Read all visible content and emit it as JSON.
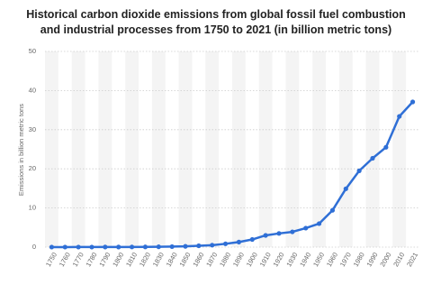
{
  "chart_data": {
    "type": "line",
    "title": "Historical carbon dioxide emissions from global fossil fuel combustion and industrial processes from 1750 to 2021 (in billion metric tons)",
    "y_label": "Emissions in billion metric tons",
    "categories": [
      "1750",
      "1760",
      "1770",
      "1780",
      "1790",
      "1800",
      "1810",
      "1820",
      "1830",
      "1840",
      "1850",
      "1860",
      "1870",
      "1880",
      "1890",
      "1900",
      "1910",
      "1920",
      "1930",
      "1940",
      "1950",
      "1960",
      "1970",
      "1980",
      "1990",
      "2000",
      "2010",
      "2021"
    ],
    "values": [
      0.01,
      0.01,
      0.02,
      0.02,
      0.03,
      0.03,
      0.04,
      0.05,
      0.08,
      0.13,
      0.2,
      0.35,
      0.5,
      0.85,
      1.3,
      1.95,
      3.0,
      3.5,
      3.9,
      4.85,
      6.0,
      9.4,
      14.9,
      19.5,
      22.7,
      25.5,
      33.4,
      37.1
    ],
    "color": "#2f6fd6",
    "ylim": [
      0,
      50
    ],
    "yticks": [
      0,
      10,
      20,
      30,
      40,
      50
    ],
    "grid": true
  }
}
